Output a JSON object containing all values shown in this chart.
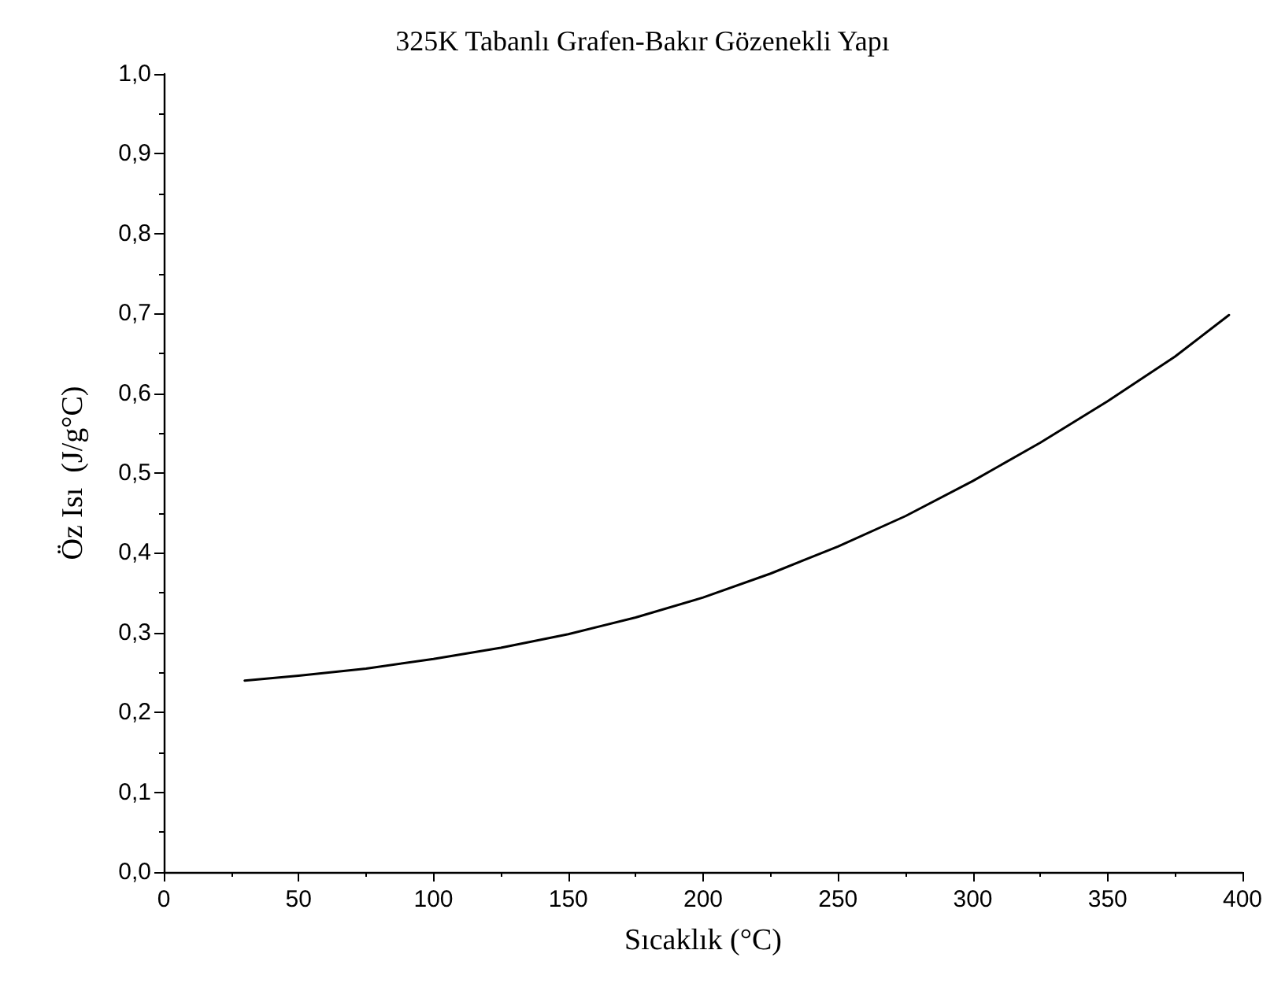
{
  "chart_data": {
    "type": "line",
    "title": "325K Tabanlı Grafen-Bakır Gözenekli Yapı",
    "xlabel": "Sıcaklık (°C)",
    "ylabel": "Öz Isı  (J/g°C)",
    "x": [
      30,
      50,
      75,
      100,
      125,
      150,
      175,
      200,
      225,
      250,
      275,
      300,
      325,
      350,
      375,
      395
    ],
    "series": [
      {
        "color": "#000000",
        "values": [
          0.24,
          0.246,
          0.255,
          0.267,
          0.281,
          0.298,
          0.319,
          0.344,
          0.374,
          0.408,
          0.446,
          0.49,
          0.538,
          0.59,
          0.646,
          0.698
        ]
      }
    ],
    "xlim": [
      0,
      400
    ],
    "xticks": [
      0,
      50,
      100,
      150,
      200,
      250,
      300,
      350,
      400
    ],
    "ylim": [
      0,
      1
    ],
    "yticks": [
      {
        "value": 0,
        "label": "0,0"
      },
      {
        "value": 0.1,
        "label": "0,1"
      },
      {
        "value": 0.2,
        "label": "0,2"
      },
      {
        "value": 0.3,
        "label": "0,3"
      },
      {
        "value": 0.4,
        "label": "0,4"
      },
      {
        "value": 0.5,
        "label": "0,5"
      },
      {
        "value": 0.6,
        "label": "0,6"
      },
      {
        "value": 0.7,
        "label": "0,7"
      },
      {
        "value": 0.8,
        "label": "0,8"
      },
      {
        "value": 0.9,
        "label": "0,9"
      },
      {
        "value": 1,
        "label": "1,0"
      }
    ],
    "grid": false,
    "marker": "none",
    "line_style": "solid"
  }
}
